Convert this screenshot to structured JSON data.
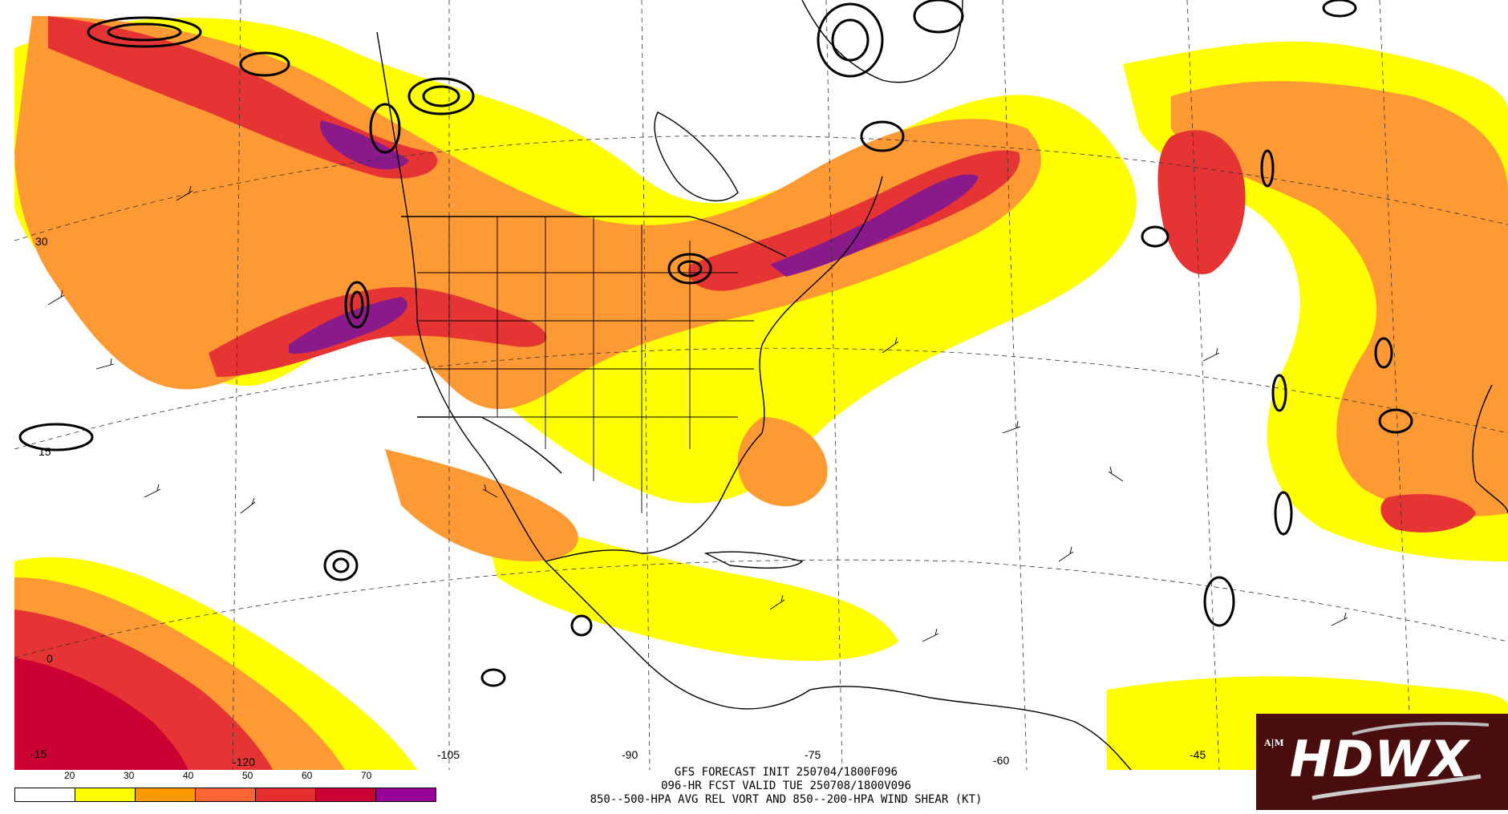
{
  "map": {
    "lat_labels": [
      "30",
      "15",
      "0",
      "-15"
    ],
    "lon_labels": [
      "-120",
      "-105",
      "-90",
      "-75",
      "-60",
      "-45"
    ]
  },
  "legend": {
    "items": [
      {
        "label": "20",
        "color": "#ffffff"
      },
      {
        "label": "30",
        "color": "#ffff00"
      },
      {
        "label": "40",
        "color": "#ff9900"
      },
      {
        "label": "50",
        "color": "#ff6633"
      },
      {
        "label": "60",
        "color": "#e62e2e"
      },
      {
        "label": "70",
        "color": "#cc0033"
      },
      {
        "label": "",
        "color": "#990099"
      }
    ]
  },
  "caption": {
    "line1": "GFS FORECAST INIT 250704/1800F096",
    "line2": "096-HR FCST VALID TUE 250708/1800V096",
    "line3": "850--500-HPA AVG REL VORT AND 850--200-HPA WIND SHEAR (KT)"
  },
  "logo": {
    "text": "HDWX",
    "mark": "A|M"
  },
  "colors": {
    "yellow": "#ffff00",
    "orange": "#ff9933",
    "red": "#e63333",
    "darkred": "#cc0033",
    "purple": "#8a1a8a"
  }
}
